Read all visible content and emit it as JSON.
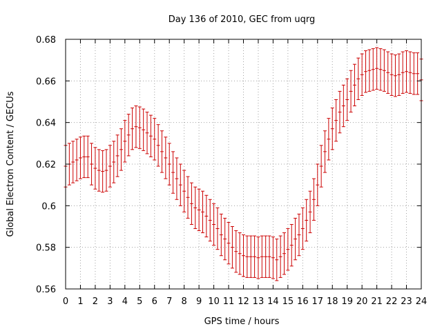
{
  "chart_data": {
    "type": "line",
    "title": "Day 136 of 2010, GEC from uqrg",
    "xlabel": "GPS time / hours",
    "ylabel": "Global Electron Content / GECUs",
    "xlim": [
      0,
      24
    ],
    "ylim": [
      0.56,
      0.68
    ],
    "x_ticks": [
      "0",
      "1",
      "2",
      "3",
      "4",
      "5",
      "6",
      "7",
      "8",
      "9",
      "10",
      "11",
      "12",
      "13",
      "14",
      "15",
      "16",
      "17",
      "18",
      "19",
      "20",
      "21",
      "22",
      "23",
      "24"
    ],
    "y_ticks": [
      "0.56",
      "0.58",
      "0.6",
      "0.62",
      "0.64",
      "0.66",
      "0.68"
    ],
    "grid": true,
    "series_color": "#cc0000",
    "x": [
      0,
      0.25,
      0.5,
      0.75,
      1,
      1.25,
      1.5,
      1.75,
      2,
      2.25,
      2.5,
      2.75,
      3,
      3.25,
      3.5,
      3.75,
      4,
      4.25,
      4.5,
      4.75,
      5,
      5.25,
      5.5,
      5.75,
      6,
      6.25,
      6.5,
      6.75,
      7,
      7.25,
      7.5,
      7.75,
      8,
      8.25,
      8.5,
      8.75,
      9,
      9.25,
      9.5,
      9.75,
      10,
      10.25,
      10.5,
      10.75,
      11,
      11.25,
      11.5,
      11.75,
      12,
      12.25,
      12.5,
      12.75,
      13,
      13.25,
      13.5,
      13.75,
      14,
      14.25,
      14.5,
      14.75,
      15,
      15.25,
      15.5,
      15.75,
      16,
      16.25,
      16.5,
      16.75,
      17,
      17.25,
      17.5,
      17.75,
      18,
      18.25,
      18.5,
      18.75,
      19,
      19.25,
      19.5,
      19.75,
      20,
      20.25,
      20.5,
      20.75,
      21,
      21.25,
      21.5,
      21.75,
      22,
      22.25,
      22.5,
      22.75,
      23,
      23.25,
      23.5,
      23.75,
      24
    ],
    "values": [
      0.619,
      0.62,
      0.621,
      0.622,
      0.623,
      0.6235,
      0.6235,
      0.62,
      0.618,
      0.617,
      0.6165,
      0.617,
      0.619,
      0.621,
      0.624,
      0.627,
      0.631,
      0.634,
      0.637,
      0.638,
      0.6375,
      0.6365,
      0.635,
      0.6335,
      0.632,
      0.629,
      0.626,
      0.623,
      0.62,
      0.616,
      0.613,
      0.61,
      0.607,
      0.604,
      0.601,
      0.599,
      0.598,
      0.597,
      0.595,
      0.593,
      0.591,
      0.589,
      0.586,
      0.584,
      0.582,
      0.58,
      0.578,
      0.577,
      0.576,
      0.5755,
      0.5755,
      0.5755,
      0.575,
      0.5755,
      0.5755,
      0.5755,
      0.575,
      0.574,
      0.5755,
      0.577,
      0.579,
      0.581,
      0.584,
      0.586,
      0.589,
      0.593,
      0.597,
      0.603,
      0.61,
      0.619,
      0.626,
      0.632,
      0.637,
      0.641,
      0.645,
      0.648,
      0.651,
      0.655,
      0.658,
      0.661,
      0.663,
      0.6645,
      0.665,
      0.6655,
      0.666,
      0.6655,
      0.665,
      0.664,
      0.663,
      0.6625,
      0.663,
      0.664,
      0.6645,
      0.664,
      0.6635,
      0.6635,
      0.6605
    ],
    "error": 0.01
  }
}
